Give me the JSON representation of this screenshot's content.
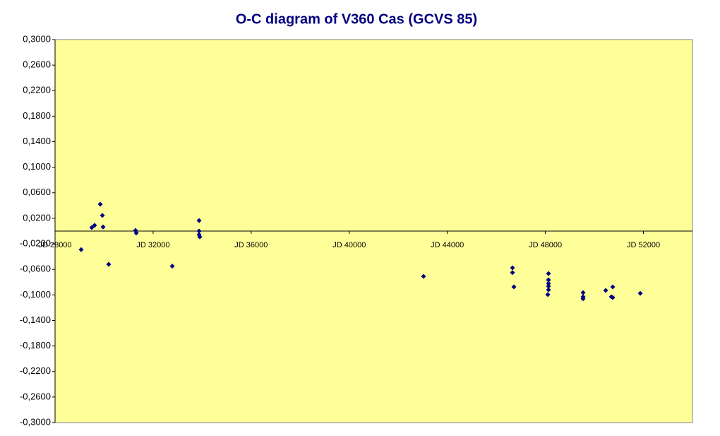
{
  "chart_data": {
    "type": "scatter",
    "title": "O-C diagram of V360 Cas (GCVS 85)",
    "x": [
      29065,
      29497,
      29612,
      29843,
      29929,
      29958,
      30188,
      31282,
      31311,
      32780,
      33874,
      33874,
      33874,
      33903,
      43030,
      46658,
      46658,
      46716,
      48127,
      48127,
      48127,
      48127,
      48127,
      48098,
      49538,
      49538,
      49538,
      50459,
      50690,
      50747,
      50747,
      51870
    ],
    "values": [
      -0.029,
      0.0055,
      0.009,
      0.042,
      0.0245,
      0.0065,
      -0.052,
      0.001,
      -0.003,
      -0.055,
      0.0165,
      0.0,
      -0.0055,
      -0.009,
      -0.071,
      -0.0575,
      -0.065,
      -0.0875,
      -0.0665,
      -0.0765,
      -0.082,
      -0.0865,
      -0.092,
      -0.0995,
      -0.0965,
      -0.103,
      -0.106,
      -0.093,
      -0.103,
      -0.104,
      -0.0875,
      -0.0975
    ],
    "color": "#000080",
    "xlim": [
      28000,
      54000
    ],
    "xticks": [
      {
        "value": 28000,
        "label": "JD 28000"
      },
      {
        "value": 32000,
        "label": "JD 32000"
      },
      {
        "value": 36000,
        "label": "JD 36000"
      },
      {
        "value": 40000,
        "label": "JD 40000"
      },
      {
        "value": 44000,
        "label": "JD 44000"
      },
      {
        "value": 48000,
        "label": "JD 48000"
      },
      {
        "value": 52000,
        "label": "JD 52000"
      }
    ],
    "ylim": [
      -0.3,
      0.3
    ],
    "yticks": [
      {
        "value": 0.3,
        "label": "0,3000"
      },
      {
        "value": 0.26,
        "label": "0,2600"
      },
      {
        "value": 0.22,
        "label": "0,2200"
      },
      {
        "value": 0.18,
        "label": "0,1800"
      },
      {
        "value": 0.14,
        "label": "0,1400"
      },
      {
        "value": 0.1,
        "label": "0,1000"
      },
      {
        "value": 0.06,
        "label": "0,0600"
      },
      {
        "value": 0.02,
        "label": "0,0200"
      },
      {
        "value": -0.02,
        "label": "-0,0200"
      },
      {
        "value": -0.06,
        "label": "-0,0600"
      },
      {
        "value": -0.1,
        "label": "-0,1000"
      },
      {
        "value": -0.14,
        "label": "-0,1400"
      },
      {
        "value": -0.18,
        "label": "-0,1800"
      },
      {
        "value": -0.22,
        "label": "-0,2200"
      },
      {
        "value": -0.26,
        "label": "-0,2600"
      },
      {
        "value": -0.3,
        "label": "-0,3000"
      }
    ],
    "grid": false
  }
}
